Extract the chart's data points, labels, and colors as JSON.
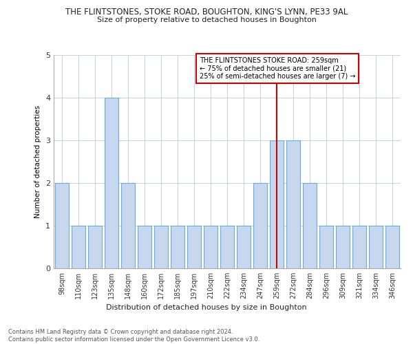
{
  "title_line1": "THE FLINTSTONES, STOKE ROAD, BOUGHTON, KING'S LYNN, PE33 9AL",
  "title_line2": "Size of property relative to detached houses in Boughton",
  "xlabel": "Distribution of detached houses by size in Boughton",
  "ylabel": "Number of detached properties",
  "categories": [
    "98sqm",
    "110sqm",
    "123sqm",
    "135sqm",
    "148sqm",
    "160sqm",
    "172sqm",
    "185sqm",
    "197sqm",
    "210sqm",
    "222sqm",
    "234sqm",
    "247sqm",
    "259sqm",
    "272sqm",
    "284sqm",
    "296sqm",
    "309sqm",
    "321sqm",
    "334sqm",
    "346sqm"
  ],
  "values": [
    2,
    1,
    1,
    4,
    2,
    1,
    1,
    1,
    1,
    1,
    1,
    1,
    2,
    3,
    3,
    2,
    1,
    1,
    1,
    1,
    1
  ],
  "bar_color": "#c5d8f0",
  "bar_edge_color": "#6aaad4",
  "vline_x_index": 13,
  "vline_color": "#cc0000",
  "ylim": [
    0,
    5
  ],
  "yticks": [
    0,
    1,
    2,
    3,
    4,
    5
  ],
  "legend_text_line1": "THE FLINTSTONES STOKE ROAD: 259sqm",
  "legend_text_line2": "← 75% of detached houses are smaller (21)",
  "legend_text_line3": "25% of semi-detached houses are larger (7) →",
  "legend_box_color": "#cc0000",
  "footer_text": "Contains HM Land Registry data © Crown copyright and database right 2024.\nContains public sector information licensed under the Open Government Licence v3.0.",
  "background_color": "#ffffff",
  "grid_color": "#c8d0da"
}
